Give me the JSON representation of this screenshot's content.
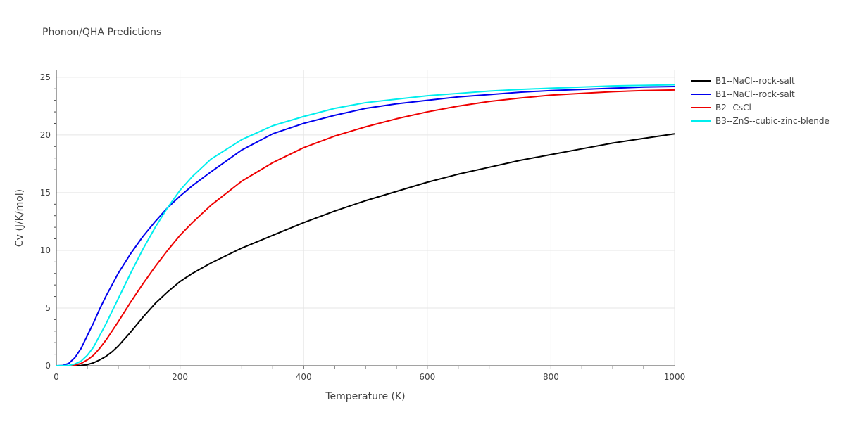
{
  "chart_data": {
    "type": "line",
    "title": "Phonon/QHA Predictions",
    "xlabel": "Temperature (K)",
    "ylabel": "Cv (J/K/mol)",
    "xlim": [
      0,
      1000
    ],
    "ylim": [
      0,
      25.6
    ],
    "xticks": [
      0,
      200,
      400,
      600,
      800,
      1000
    ],
    "yticks": [
      0,
      5,
      10,
      15,
      20,
      25
    ],
    "grid": true,
    "legend_position": "top-right",
    "series": [
      {
        "name": "B1--NaCl--rock-salt",
        "color": "#000000",
        "x": [
          0,
          20,
          40,
          50,
          60,
          70,
          80,
          90,
          100,
          120,
          140,
          160,
          180,
          200,
          220,
          250,
          300,
          350,
          400,
          450,
          500,
          550,
          600,
          650,
          700,
          750,
          800,
          850,
          900,
          950,
          1000
        ],
        "y": [
          0,
          0,
          0.02,
          0.1,
          0.25,
          0.5,
          0.8,
          1.2,
          1.7,
          2.9,
          4.2,
          5.4,
          6.4,
          7.3,
          8.0,
          8.9,
          10.2,
          11.3,
          12.4,
          13.4,
          14.3,
          15.1,
          15.9,
          16.6,
          17.2,
          17.8,
          18.3,
          18.8,
          19.3,
          19.7,
          20.1
        ]
      },
      {
        "name": "B1--NaCl--rock-salt",
        "color": "#0000ee",
        "x": [
          0,
          10,
          20,
          30,
          40,
          50,
          60,
          70,
          80,
          90,
          100,
          120,
          140,
          160,
          180,
          200,
          220,
          250,
          300,
          350,
          400,
          450,
          500,
          550,
          600,
          650,
          700,
          750,
          800,
          850,
          900,
          950,
          1000
        ],
        "y": [
          0,
          0.02,
          0.2,
          0.7,
          1.5,
          2.6,
          3.7,
          4.9,
          6.0,
          7.0,
          8.0,
          9.7,
          11.2,
          12.5,
          13.7,
          14.7,
          15.6,
          16.8,
          18.7,
          20.1,
          21.0,
          21.7,
          22.3,
          22.7,
          23.0,
          23.3,
          23.5,
          23.7,
          23.85,
          23.95,
          24.05,
          24.15,
          24.2
        ]
      },
      {
        "name": "B2--CsCl",
        "color": "#ee0000",
        "x": [
          0,
          20,
          30,
          40,
          50,
          60,
          70,
          80,
          90,
          100,
          120,
          140,
          160,
          180,
          200,
          220,
          250,
          300,
          350,
          400,
          450,
          500,
          550,
          600,
          650,
          700,
          750,
          800,
          850,
          900,
          950,
          1000
        ],
        "y": [
          0,
          0.01,
          0.05,
          0.2,
          0.5,
          0.9,
          1.5,
          2.2,
          3.0,
          3.8,
          5.5,
          7.1,
          8.6,
          10.0,
          11.3,
          12.4,
          13.9,
          16.0,
          17.6,
          18.9,
          19.9,
          20.7,
          21.4,
          22.0,
          22.5,
          22.9,
          23.2,
          23.45,
          23.6,
          23.75,
          23.85,
          23.9
        ]
      },
      {
        "name": "B3--ZnS--cubic-zinc-blende",
        "color": "#00eeee",
        "x": [
          0,
          20,
          30,
          40,
          50,
          60,
          70,
          80,
          90,
          100,
          120,
          140,
          160,
          180,
          200,
          220,
          250,
          300,
          350,
          400,
          450,
          500,
          550,
          600,
          650,
          700,
          750,
          800,
          850,
          900,
          950,
          1000
        ],
        "y": [
          0,
          0.02,
          0.15,
          0.4,
          0.9,
          1.6,
          2.6,
          3.6,
          4.7,
          5.8,
          8.0,
          10.1,
          12.0,
          13.7,
          15.2,
          16.4,
          17.9,
          19.6,
          20.8,
          21.6,
          22.3,
          22.8,
          23.1,
          23.4,
          23.6,
          23.8,
          23.95,
          24.05,
          24.15,
          24.25,
          24.3,
          24.35
        ]
      }
    ]
  }
}
